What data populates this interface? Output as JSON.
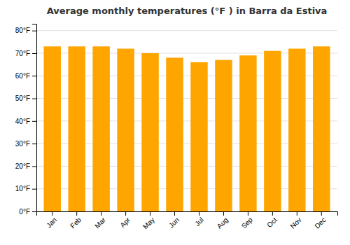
{
  "chart_data": {
    "type": "bar",
    "title": "Average monthly temperatures (°F ) in Barra da Estiva",
    "categories": [
      "Jan",
      "Feb",
      "Mar",
      "Apr",
      "May",
      "Jun",
      "Jul",
      "Aug",
      "Sep",
      "Oct",
      "Nov",
      "Dec"
    ],
    "values": [
      73,
      73,
      73,
      72,
      70,
      68,
      66,
      67,
      69,
      71,
      72,
      73
    ],
    "color": "#FFA500",
    "ylim": [
      0,
      83
    ],
    "yticks": [
      {
        "value": 0,
        "label": "0°F"
      },
      {
        "value": 10,
        "label": "10°F"
      },
      {
        "value": 20,
        "label": "20°F"
      },
      {
        "value": 30,
        "label": "30°F"
      },
      {
        "value": 40,
        "label": "40°F"
      },
      {
        "value": 50,
        "label": "50°F"
      },
      {
        "value": 60,
        "label": "60°F"
      },
      {
        "value": 70,
        "label": "70°F"
      },
      {
        "value": 80,
        "label": "80°F"
      }
    ],
    "grid": true
  }
}
